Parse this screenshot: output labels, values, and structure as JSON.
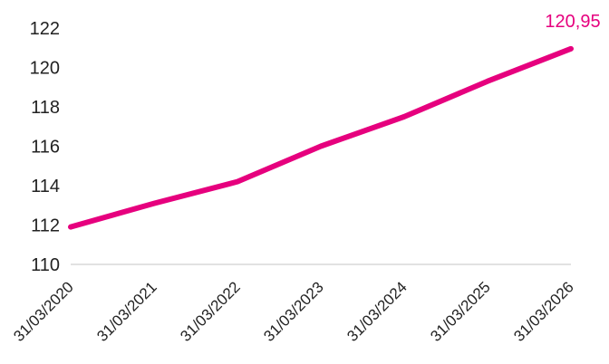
{
  "chart_data": {
    "type": "line",
    "x": [
      "31/03/2020",
      "31/03/2021",
      "31/03/2022",
      "31/03/2023",
      "31/03/2024",
      "31/03/2025",
      "31/03/2026"
    ],
    "series": [
      {
        "values": [
          111.9,
          113.1,
          114.2,
          116.0,
          117.5,
          119.3,
          120.95
        ]
      }
    ],
    "ylim": [
      110,
      122
    ],
    "yticks": [
      110,
      112,
      114,
      116,
      118,
      120,
      122
    ],
    "end_label": "120,95",
    "colors": {
      "line": "#E6007E",
      "baseline": "#D9D9D9"
    },
    "grid": false,
    "legend": "none"
  }
}
